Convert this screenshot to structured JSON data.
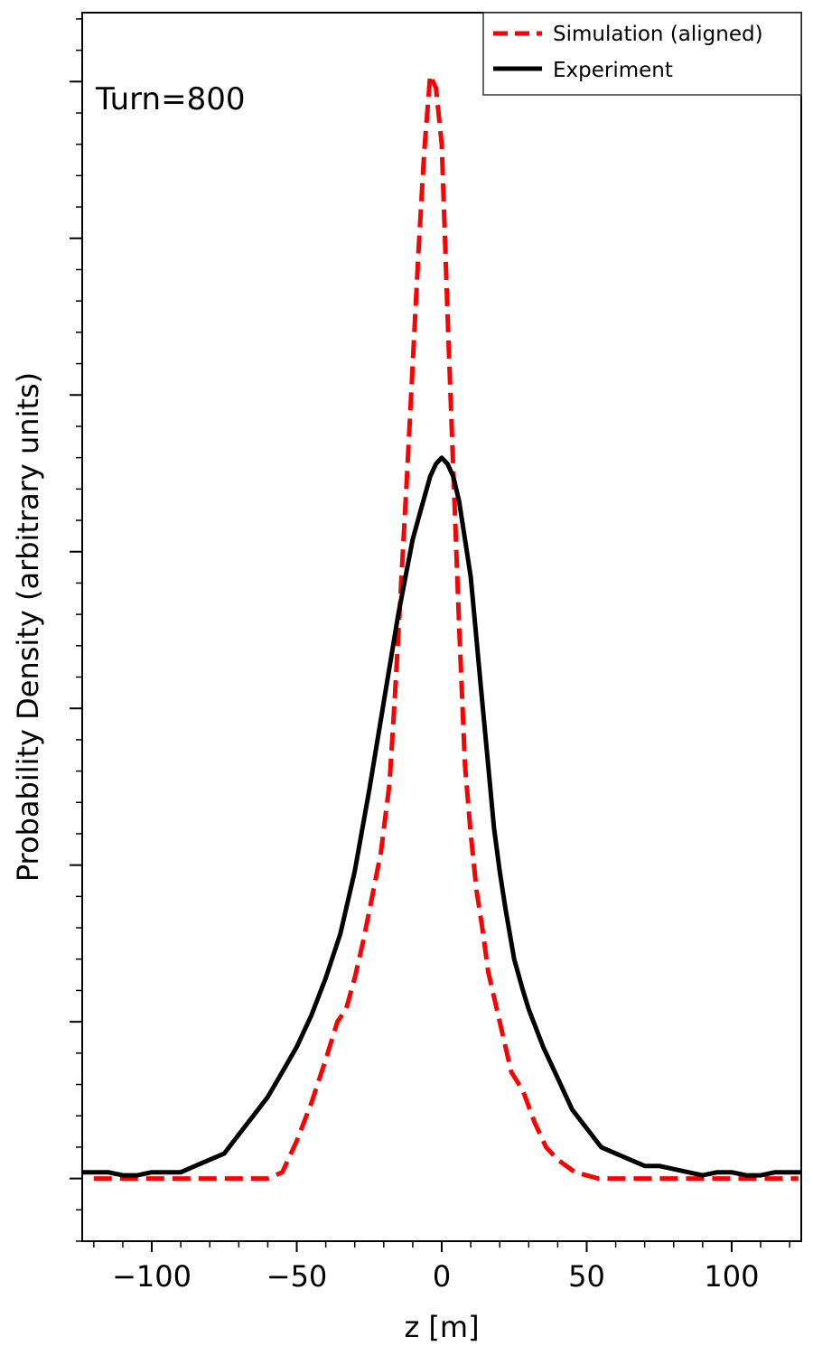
{
  "chart_data": {
    "type": "line",
    "xlabel": "z [m]",
    "ylabel": "Probability Density (arbitrary units)",
    "xlim": [
      -124,
      124
    ],
    "ylim": [
      -1.0,
      18.6
    ],
    "x_ticks": [
      -100,
      -50,
      0,
      50,
      100
    ],
    "x_tick_labels": [
      "−100",
      "−50",
      "0",
      "50",
      "100"
    ],
    "y_tick_labels_visible": false,
    "grid": false,
    "legend_position": "top-right",
    "annotation": "Turn=800",
    "series": [
      {
        "name": "Simulation (aligned)",
        "color": "#ff0000",
        "style": "dashed",
        "x": [
          -120,
          -100,
          -80,
          -60,
          -55,
          -50,
          -45,
          -40,
          -36,
          -33,
          -30,
          -27,
          -24,
          -21,
          -18,
          -16,
          -14,
          -12,
          -10,
          -8,
          -6,
          -4,
          -2,
          0,
          2,
          4,
          6,
          8,
          10,
          12,
          14,
          16,
          18,
          20,
          24,
          28,
          32,
          36,
          40,
          46,
          54,
          70,
          90,
          110,
          123
        ],
        "values": [
          0,
          0,
          0,
          0,
          0.1,
          0.6,
          1.2,
          1.9,
          2.5,
          2.7,
          3.2,
          3.8,
          4.5,
          5.2,
          6.3,
          7.8,
          9.5,
          11.2,
          13.0,
          14.8,
          16.4,
          17.6,
          17.4,
          16.5,
          13.8,
          11.3,
          8.8,
          6.6,
          5.5,
          4.6,
          4.0,
          3.3,
          2.9,
          2.5,
          1.7,
          1.4,
          0.9,
          0.5,
          0.3,
          0.1,
          0,
          0,
          0,
          0,
          0
        ]
      },
      {
        "name": "Experiment",
        "color": "#000000",
        "style": "solid",
        "x": [
          -124,
          -115,
          -110,
          -105,
          -100,
          -95,
          -90,
          -85,
          -80,
          -75,
          -70,
          -65,
          -60,
          -55,
          -50,
          -45,
          -40,
          -35,
          -30,
          -25,
          -20,
          -15,
          -10,
          -7,
          -4,
          -2,
          0,
          2,
          4,
          6,
          8,
          10,
          12,
          14,
          16,
          18,
          20,
          22,
          25,
          28,
          30,
          35,
          40,
          45,
          50,
          55,
          60,
          65,
          70,
          75,
          80,
          85,
          90,
          95,
          100,
          105,
          110,
          115,
          120,
          124
        ],
        "values": [
          0.1,
          0.1,
          0.05,
          0.05,
          0.1,
          0.1,
          0.1,
          0.2,
          0.3,
          0.4,
          0.7,
          1.0,
          1.3,
          1.7,
          2.1,
          2.6,
          3.2,
          3.9,
          4.9,
          6.2,
          7.6,
          9.0,
          10.2,
          10.7,
          11.2,
          11.4,
          11.5,
          11.4,
          11.2,
          10.8,
          10.2,
          9.6,
          8.6,
          7.6,
          6.6,
          5.6,
          4.9,
          4.3,
          3.5,
          3.0,
          2.7,
          2.1,
          1.6,
          1.1,
          0.8,
          0.5,
          0.4,
          0.3,
          0.2,
          0.2,
          0.15,
          0.1,
          0.05,
          0.1,
          0.1,
          0.05,
          0.05,
          0.1,
          0.1,
          0.1
        ]
      }
    ]
  }
}
